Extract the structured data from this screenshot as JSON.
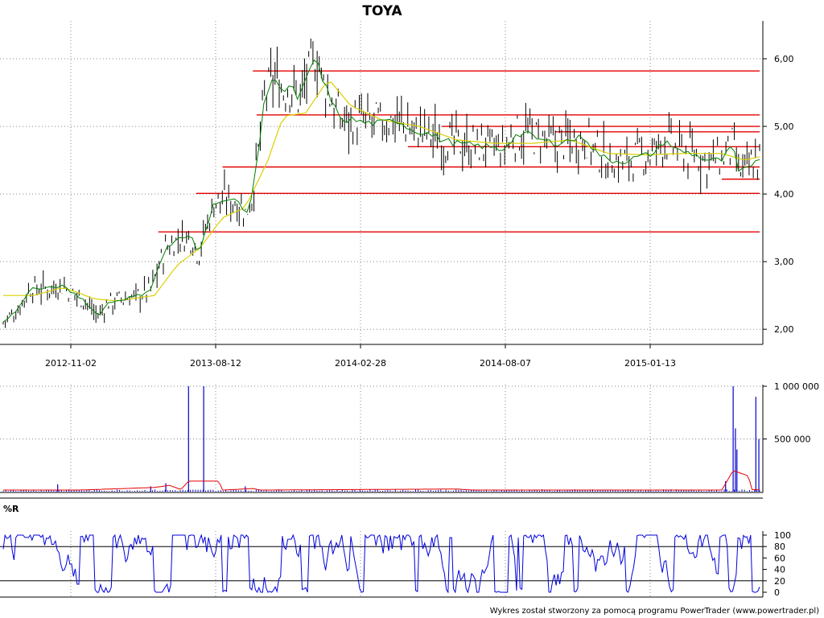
{
  "chart_data": [
    {
      "panel": "price",
      "type": "line",
      "title": "TOYA",
      "x_tick_labels": [
        "2012-11-02",
        "2013-08-12",
        "2014-02-28",
        "2014-08-07",
        "2015-01-13"
      ],
      "y_tick_labels": [
        "6,00",
        "5,00",
        "4,00",
        "3,00",
        "2,00"
      ],
      "y_ticks": [
        6,
        5,
        4,
        3,
        2
      ],
      "ylim": [
        1.8,
        6.5
      ],
      "grid": true,
      "anchor_points": [
        [
          0,
          2.1
        ],
        [
          0.02,
          2.3
        ],
        [
          0.035,
          2.6
        ],
        [
          0.06,
          2.6
        ],
        [
          0.075,
          2.65
        ],
        [
          0.09,
          2.55
        ],
        [
          0.105,
          2.45
        ],
        [
          0.125,
          2.2
        ],
        [
          0.14,
          2.4
        ],
        [
          0.16,
          2.45
        ],
        [
          0.18,
          2.5
        ],
        [
          0.195,
          2.6
        ],
        [
          0.205,
          2.9
        ],
        [
          0.215,
          3.2
        ],
        [
          0.235,
          3.35
        ],
        [
          0.25,
          3.35
        ],
        [
          0.258,
          3.1
        ],
        [
          0.265,
          3.4
        ],
        [
          0.28,
          3.9
        ],
        [
          0.295,
          3.9
        ],
        [
          0.31,
          3.9
        ],
        [
          0.32,
          3.7
        ],
        [
          0.33,
          4.0
        ],
        [
          0.338,
          4.7
        ],
        [
          0.345,
          5.4
        ],
        [
          0.36,
          5.75
        ],
        [
          0.37,
          5.5
        ],
        [
          0.38,
          5.6
        ],
        [
          0.39,
          5.4
        ],
        [
          0.405,
          5.8
        ],
        [
          0.415,
          6.05
        ],
        [
          0.42,
          5.7
        ],
        [
          0.43,
          5.5
        ],
        [
          0.445,
          5.1
        ],
        [
          0.46,
          5.1
        ],
        [
          0.48,
          5.05
        ],
        [
          0.5,
          5.05
        ],
        [
          0.52,
          5.1
        ],
        [
          0.54,
          4.95
        ],
        [
          0.56,
          4.9
        ],
        [
          0.58,
          4.8
        ],
        [
          0.6,
          4.75
        ],
        [
          0.62,
          4.72
        ],
        [
          0.64,
          4.7
        ],
        [
          0.66,
          4.65
        ],
        [
          0.675,
          4.85
        ],
        [
          0.69,
          4.9
        ],
        [
          0.71,
          4.8
        ],
        [
          0.73,
          4.75
        ],
        [
          0.75,
          4.8
        ],
        [
          0.77,
          4.85
        ],
        [
          0.78,
          4.65
        ],
        [
          0.8,
          4.5
        ],
        [
          0.82,
          4.48
        ],
        [
          0.84,
          4.55
        ],
        [
          0.86,
          4.6
        ],
        [
          0.875,
          4.8
        ],
        [
          0.89,
          4.65
        ],
        [
          0.91,
          4.6
        ],
        [
          0.93,
          4.5
        ],
        [
          0.95,
          4.5
        ],
        [
          0.965,
          4.72
        ],
        [
          0.972,
          4.3
        ],
        [
          0.985,
          4.4
        ],
        [
          1.0,
          4.55
        ]
      ],
      "ma_anchor_points": [
        [
          0,
          2.5
        ],
        [
          0.04,
          2.5
        ],
        [
          0.08,
          2.62
        ],
        [
          0.12,
          2.45
        ],
        [
          0.15,
          2.42
        ],
        [
          0.2,
          2.5
        ],
        [
          0.23,
          2.95
        ],
        [
          0.26,
          3.2
        ],
        [
          0.29,
          3.65
        ],
        [
          0.32,
          3.8
        ],
        [
          0.35,
          4.5
        ],
        [
          0.37,
          5.15
        ],
        [
          0.4,
          5.2
        ],
        [
          0.43,
          5.7
        ],
        [
          0.46,
          5.3
        ],
        [
          0.5,
          5.1
        ],
        [
          0.55,
          5.0
        ],
        [
          0.6,
          4.8
        ],
        [
          0.65,
          4.75
        ],
        [
          0.7,
          4.75
        ],
        [
          0.75,
          4.8
        ],
        [
          0.8,
          4.6
        ],
        [
          0.85,
          4.58
        ],
        [
          0.9,
          4.6
        ],
        [
          0.95,
          4.6
        ],
        [
          0.98,
          4.5
        ],
        [
          1.0,
          4.55
        ]
      ],
      "horizontal_lines": [
        {
          "level": 5.82,
          "x_start": 0.33,
          "x_end": 1.0
        },
        {
          "level": 5.17,
          "x_start": 0.335,
          "x_end": 1.0
        },
        {
          "level": 5.0,
          "x_start": 0.58,
          "x_end": 1.0
        },
        {
          "level": 4.92,
          "x_start": 0.73,
          "x_end": 1.0
        },
        {
          "level": 4.7,
          "x_start": 0.535,
          "x_end": 1.0
        },
        {
          "level": 4.4,
          "x_start": 0.29,
          "x_end": 1.0
        },
        {
          "level": 4.22,
          "x_start": 0.95,
          "x_end": 1.0
        },
        {
          "level": 4.01,
          "x_start": 0.255,
          "x_end": 1.0
        },
        {
          "level": 3.44,
          "x_start": 0.205,
          "x_end": 1.0
        }
      ],
      "colors": {
        "price": "#000000",
        "ma_fast": "#008000",
        "ma_slow": "#d8d000",
        "levels": "#e60000"
      }
    },
    {
      "panel": "volume",
      "type": "bar",
      "y_tick_labels": [
        "1 000 000",
        "500 000"
      ],
      "y_ticks": [
        1000000,
        500000
      ],
      "ylim": [
        0,
        1000000
      ],
      "spikes": [
        [
          0.245,
          1000000
        ],
        [
          0.265,
          1000000
        ],
        [
          0.072,
          70000
        ],
        [
          0.195,
          50000
        ],
        [
          0.215,
          80000
        ],
        [
          0.32,
          50000
        ],
        [
          0.965,
          1000000
        ],
        [
          0.968,
          600000
        ],
        [
          0.97,
          400000
        ],
        [
          0.955,
          100000
        ],
        [
          0.995,
          900000
        ],
        [
          0.999,
          500000
        ]
      ],
      "ma_anchor_points": [
        [
          0,
          15000
        ],
        [
          0.1,
          15000
        ],
        [
          0.2,
          40000
        ],
        [
          0.22,
          60000
        ],
        [
          0.235,
          20000
        ],
        [
          0.245,
          100000
        ],
        [
          0.285,
          100000
        ],
        [
          0.29,
          15000
        ],
        [
          0.33,
          30000
        ],
        [
          0.34,
          15000
        ],
        [
          0.6,
          25000
        ],
        [
          0.62,
          15000
        ],
        [
          0.95,
          15000
        ],
        [
          0.965,
          200000
        ],
        [
          0.985,
          150000
        ],
        [
          0.99,
          20000
        ],
        [
          1.0,
          20000
        ]
      ],
      "colors": {
        "bars": "#0000cc",
        "ma": "#e60000"
      }
    },
    {
      "panel": "williams_r",
      "type": "line",
      "label": "%R",
      "y_tick_labels": [
        "100",
        "80",
        "60",
        "40",
        "20",
        "0"
      ],
      "y_ticks": [
        100,
        80,
        60,
        40,
        20,
        0
      ],
      "ylim": [
        0,
        100
      ],
      "reference_lines": [
        80,
        20
      ],
      "colors": {
        "line": "#0000dd",
        "reference": "#000000"
      }
    }
  ],
  "footer": {
    "credit": "Wykres został stworzony za pomocą programu PowerTrader (www.powertrader.pl)"
  }
}
